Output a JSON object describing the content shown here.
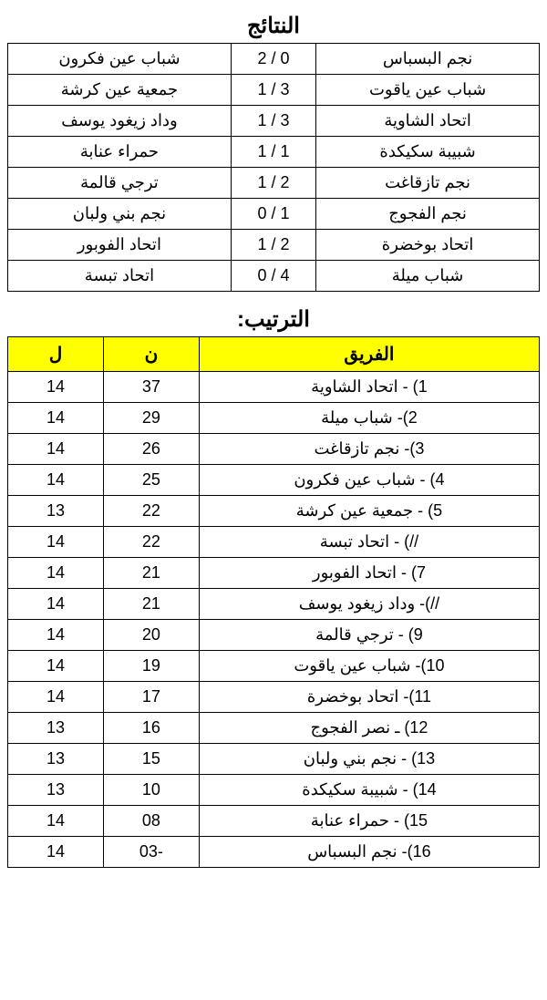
{
  "results_heading": "النتائج",
  "standings_heading": "الترتيب:",
  "results_table": {
    "columns": [
      "home",
      "score",
      "away"
    ],
    "rows": [
      [
        "نجم البسباس",
        "2 / 0",
        "شباب عين فكرون"
      ],
      [
        "شباب عين ياقوت",
        "1 / 3",
        "جمعية عين كرشة"
      ],
      [
        "اتحاد الشاوية",
        "1 / 3",
        "وداد زيغود يوسف"
      ],
      [
        "شبيبة سكيكدة",
        "1 / 1",
        "حمراء عنابة"
      ],
      [
        "نجم تازقاغت",
        "1 / 2",
        "ترجي قالمة"
      ],
      [
        "نجم الفجوج",
        "0 / 1",
        "نجم بني ولبان"
      ],
      [
        "اتحاد بوخضرة",
        "1 / 2",
        "اتحاد الفوبور"
      ],
      [
        "شباب ميلة",
        "0 / 4",
        "اتحاد تبسة"
      ]
    ]
  },
  "standings_table": {
    "header": {
      "team": "الفريق",
      "points": "ن",
      "played": "ل"
    },
    "header_bg": "#ffff00",
    "rows": [
      {
        "team": "1) - اتحاد الشاوية",
        "points": "37",
        "played": "14"
      },
      {
        "team": "2)- شباب ميلة",
        "points": "29",
        "played": "14"
      },
      {
        "team": "3)- نجم تازقاغت",
        "points": "26",
        "played": "14"
      },
      {
        "team": "4) - شباب عين فكرون",
        "points": "25",
        "played": "14"
      },
      {
        "team": "5) - جمعية عين كرشة",
        "points": "22",
        "played": "13"
      },
      {
        "team": "//) - اتحاد تبسة",
        "points": "22",
        "played": "14"
      },
      {
        "team": "7) - اتحاد الفوبور",
        "points": "21",
        "played": "14"
      },
      {
        "team": "//)- وداد زيغود يوسف",
        "points": "21",
        "played": "14"
      },
      {
        "team": "9) - ترجي قالمة",
        "points": "20",
        "played": "14"
      },
      {
        "team": "10)- شباب عين ياقوت",
        "points": "19",
        "played": "14"
      },
      {
        "team": "11)- اتحاد بوخضرة",
        "points": "17",
        "played": "14"
      },
      {
        "team": "12) ـ نصر الفجوج",
        "points": "16",
        "played": "13"
      },
      {
        "team": "13) - نجم بني ولبان",
        "points": "15",
        "played": "13"
      },
      {
        "team": "14) - شبيبة سكيكدة",
        "points": "10",
        "played": "13"
      },
      {
        "team": "15) - حمراء عنابة",
        "points": "08",
        "played": "14"
      },
      {
        "team": "16)- نجم البسباس",
        "points": "03-",
        "played": "14"
      }
    ]
  }
}
